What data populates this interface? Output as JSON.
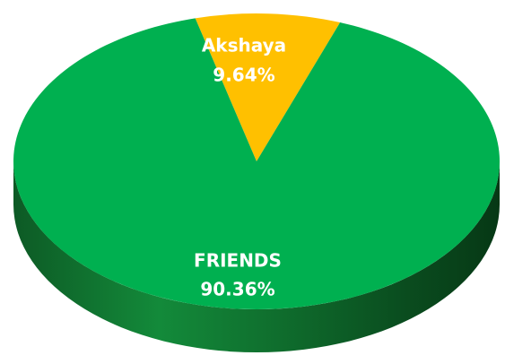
{
  "chart_data": {
    "type": "pie",
    "categories": [
      "Akshaya",
      "FRIENDS"
    ],
    "values": [
      9.64,
      90.36
    ],
    "value_labels": [
      "9.64%",
      "90.36%"
    ],
    "colors": [
      "#ffc000",
      "#00b050"
    ]
  }
}
